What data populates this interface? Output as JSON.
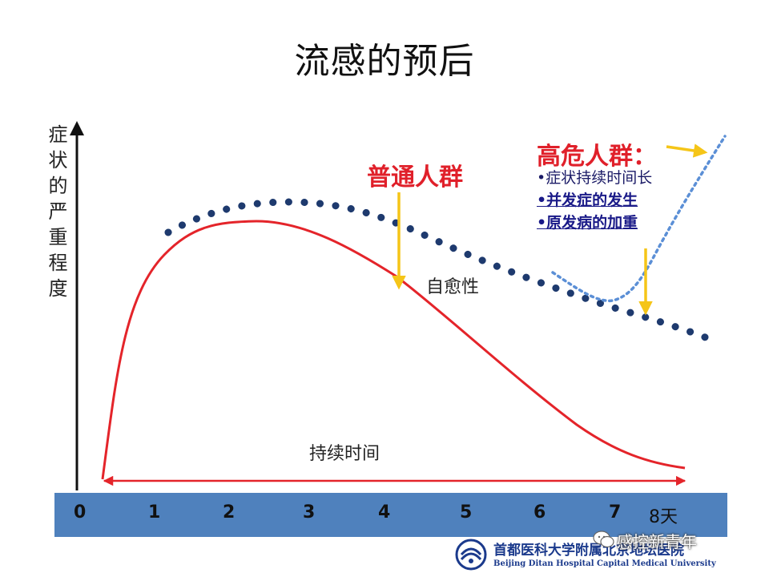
{
  "slide": {
    "title": "流感的预后",
    "y_axis_label": "症状的严重程度",
    "labels": {
      "normal_group": "普通人群",
      "self_healing": "自愈性",
      "duration": "持续时间",
      "high_risk_title": "高危人群：",
      "high_risk_items": [
        "•症状持续时间长",
        "•并发症的发生",
        "•原发病的加重"
      ]
    },
    "timeline": {
      "ticks": [
        "0",
        "1",
        "2",
        "3",
        "4",
        "5",
        "6",
        "7",
        "8天"
      ]
    },
    "footer": {
      "logo_cn": "首都医科大学附属北京地坛医院",
      "logo_en": "Beijing Ditan Hospital Capital Medical University",
      "watermark": "感控新青年"
    },
    "colors": {
      "red_curve": "#e4242a",
      "dotted_curve": "#1e3a6e",
      "rising_curve": "#5b8fd6",
      "arrow_yellow": "#f5c518",
      "timeline_bar": "#4f81bd"
    },
    "icons": {
      "watermark_icon": "wechat-icon",
      "logo_mark": "hospital-logo-icon"
    }
  }
}
